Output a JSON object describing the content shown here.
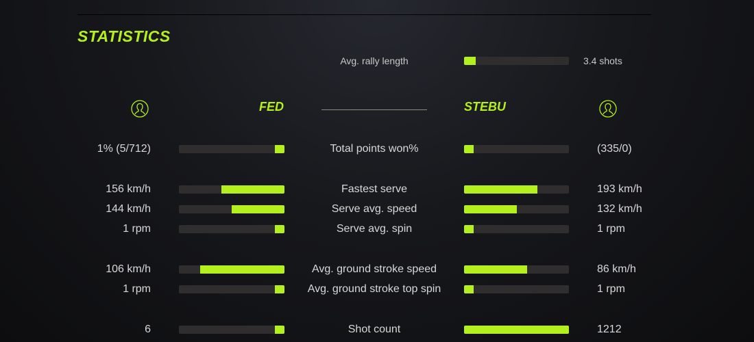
{
  "title": "STATISTICS",
  "accent": "#b4f01e",
  "rally": {
    "label": "Avg. rally length",
    "value": "3.4 shots",
    "fill": 11
  },
  "players": {
    "left": {
      "name": "FED",
      "icon": "user-circle-icon"
    },
    "right": {
      "name": "STEBU",
      "icon": "user-circle-icon"
    }
  },
  "stats": [
    {
      "label": "Total points won%",
      "left": "1% (5/712)",
      "right": "(335/0)",
      "left_fill": 9,
      "right_fill": 9
    },
    {
      "label": "Fastest serve",
      "left": "156 km/h",
      "right": "193 km/h",
      "left_fill": 60,
      "right_fill": 70
    },
    {
      "label": "Serve avg. speed",
      "left": "144 km/h",
      "right": "132 km/h",
      "left_fill": 50,
      "right_fill": 50
    },
    {
      "label": "Serve avg. spin",
      "left": "1 rpm",
      "right": "1 rpm",
      "left_fill": 9,
      "right_fill": 9
    },
    {
      "label": "Avg. ground stroke speed",
      "left": "106 km/h",
      "right": "86 km/h",
      "left_fill": 80,
      "right_fill": 60
    },
    {
      "label": "Avg. ground stroke top spin",
      "left": "1 rpm",
      "right": "1 rpm",
      "left_fill": 9,
      "right_fill": 9
    },
    {
      "label": "Shot count",
      "left": "6",
      "right": "1212",
      "left_fill": 9,
      "right_fill": 100
    }
  ]
}
